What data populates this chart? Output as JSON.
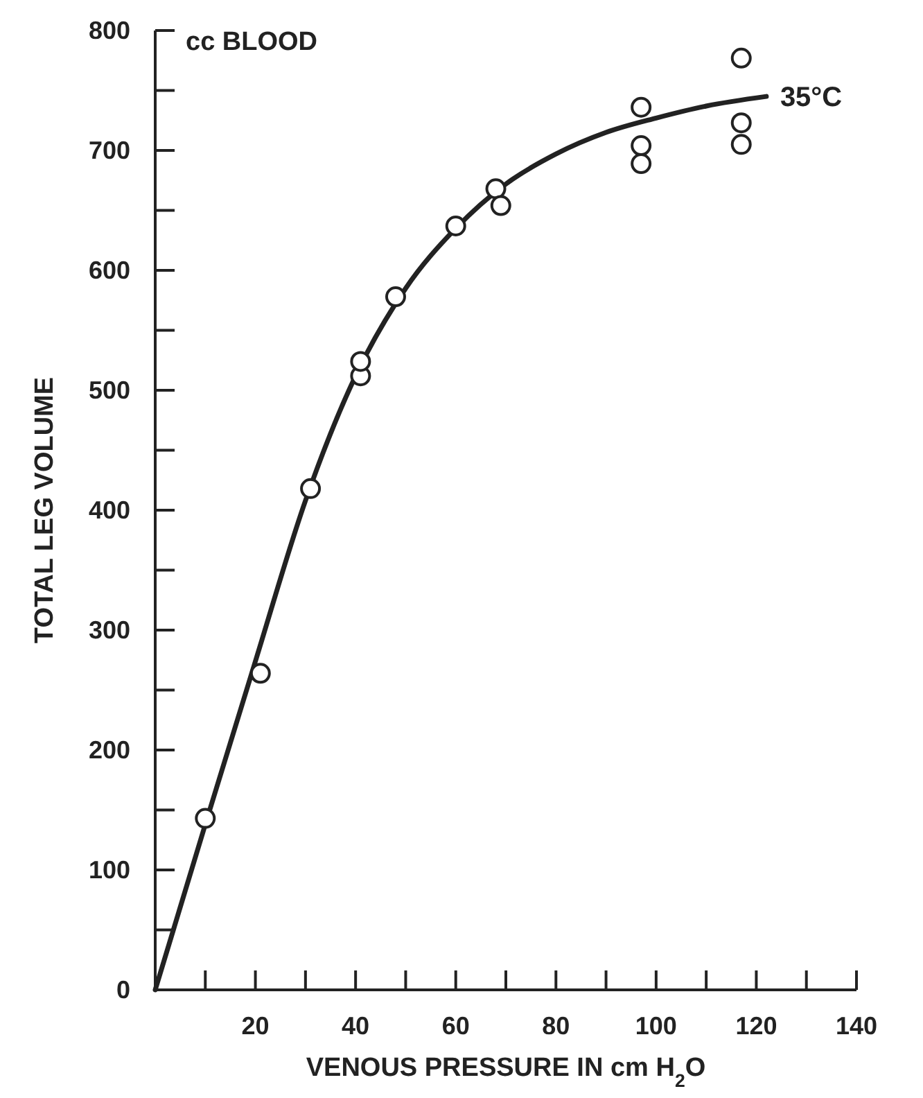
{
  "chart_data": {
    "type": "scatter",
    "xlabel": "VENOUS PRESSURE IN cm H$_{2}$O",
    "ylabel": "TOTAL LEG VOLUME",
    "annotations": [
      "cc BLOOD"
    ],
    "xlim": [
      0,
      140
    ],
    "ylim": [
      0,
      800
    ],
    "xticks": [
      {
        "value": 10,
        "label": null
      },
      20,
      {
        "value": 30,
        "label": null
      },
      40,
      {
        "value": 50,
        "label": null
      },
      60,
      {
        "value": 70,
        "label": null
      },
      80,
      {
        "value": 90,
        "label": null
      },
      100,
      {
        "value": 110,
        "label": null
      },
      120,
      {
        "value": 130,
        "label": null
      },
      140
    ],
    "yticks": [
      0,
      {
        "value": 50,
        "label": null
      },
      100,
      {
        "value": 150,
        "label": null
      },
      200,
      {
        "value": 250,
        "label": null
      },
      300,
      {
        "value": 350,
        "label": null
      },
      400,
      {
        "value": 450,
        "label": null
      },
      500,
      {
        "value": 550,
        "label": null
      },
      600,
      {
        "value": 650,
        "label": null
      },
      700,
      {
        "value": 750,
        "label": null
      },
      800
    ],
    "grid": false,
    "series": [
      {
        "type": "line",
        "name": "35°C",
        "color": "#222222",
        "marker": "none",
        "line_style": "solid",
        "x": [
          0,
          10,
          20,
          30,
          40,
          50,
          60,
          70,
          80,
          90,
          100,
          110,
          122
        ],
        "values": [
          0,
          138,
          274,
          408,
          512,
          585,
          635,
          672,
          697,
          715,
          727,
          737,
          745
        ]
      },
      {
        "color": "#222222",
        "marker": "circle",
        "x": [
          10,
          21,
          31,
          41,
          41,
          48,
          60,
          68,
          69,
          97,
          97,
          97,
          117,
          117,
          117
        ],
        "values": [
          143,
          264,
          418,
          512,
          524,
          578,
          637,
          668,
          654,
          736,
          704,
          689,
          777,
          723,
          705
        ]
      }
    ]
  }
}
